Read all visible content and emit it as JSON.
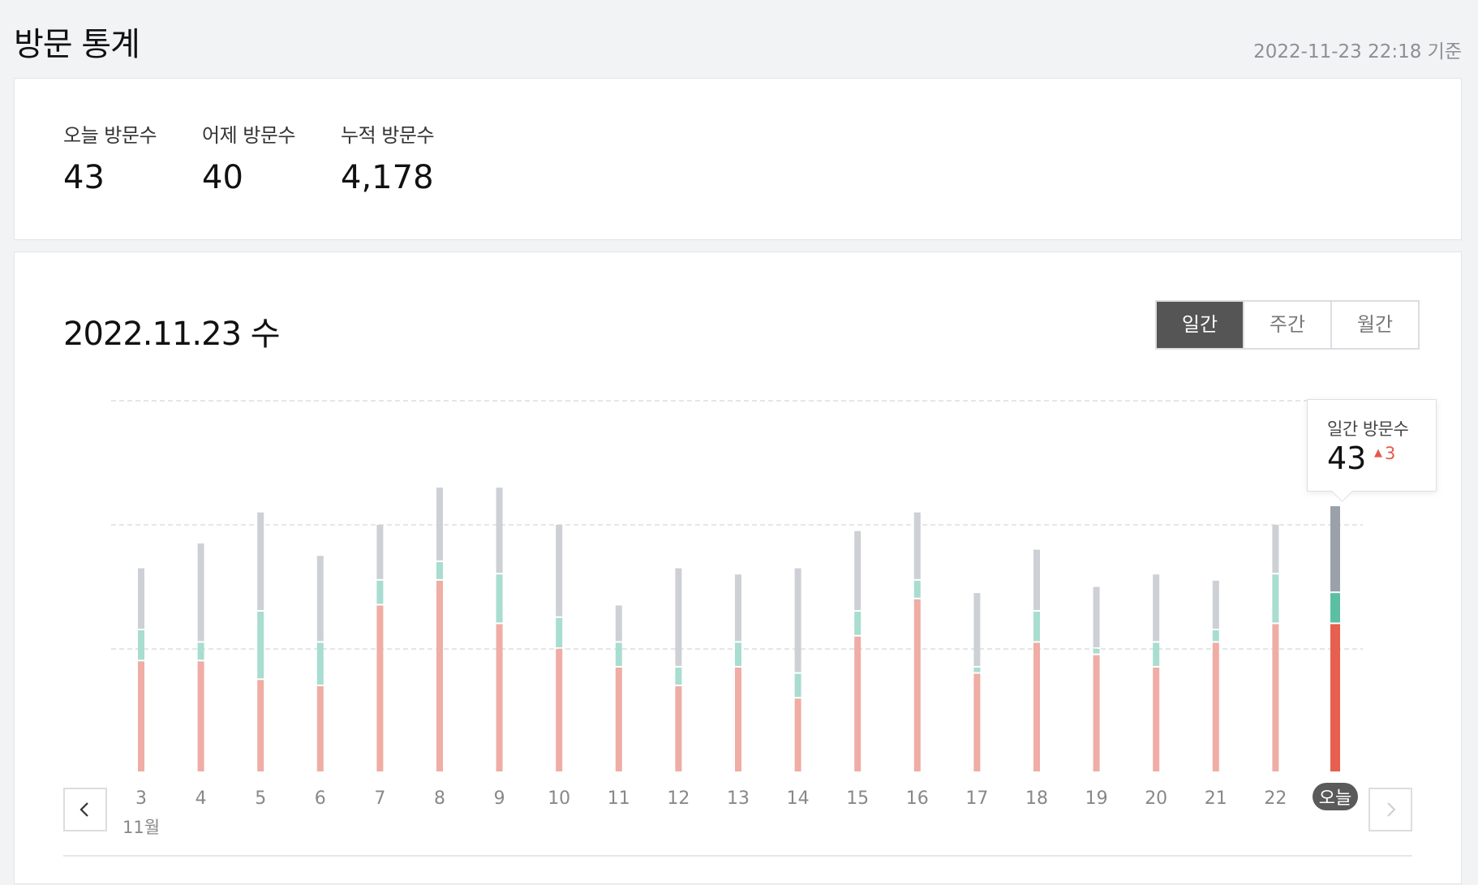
{
  "header": {
    "title": "방문 통계",
    "timestamp": "2022-11-23 22:18 기준"
  },
  "summary": {
    "today_label": "오늘 방문수",
    "today_value": "43",
    "yesterday_label": "어제 방문수",
    "yesterday_value": "40",
    "total_label": "누적 방문수",
    "total_value": "4,178"
  },
  "chart_panel": {
    "date_title": "2022.11.23 수",
    "tabs": [
      "일간",
      "주간",
      "월간"
    ],
    "active_tab": "일간",
    "month_label": "11월",
    "tooltip": {
      "label": "일간 방문수",
      "value": "43",
      "change": "3",
      "change_arrow": "▲"
    }
  },
  "colors": {
    "segment_bottom": "#efada5",
    "segment_middle": "#a8ddd0",
    "segment_top": "#cdd0d4",
    "today_bottom": "#e65f4f",
    "today_middle": "#5cbfa4",
    "today_top": "#9ba1a9",
    "today_badge": "#5a5a5a",
    "grid": "#dcdde0"
  },
  "chart_data": {
    "type": "bar",
    "stacked": true,
    "categories": [
      "3",
      "4",
      "5",
      "6",
      "7",
      "8",
      "9",
      "10",
      "11",
      "12",
      "13",
      "14",
      "15",
      "16",
      "17",
      "18",
      "19",
      "20",
      "21",
      "22",
      "오늘"
    ],
    "highlight_category": "오늘",
    "series": [
      {
        "values": [
          18,
          18,
          15,
          14,
          27,
          31,
          24,
          20,
          17,
          14,
          17,
          12,
          22,
          28,
          16,
          21,
          19,
          17,
          21,
          24,
          24
        ]
      },
      {
        "values": [
          5,
          3,
          11,
          7,
          4,
          3,
          8,
          5,
          4,
          3,
          4,
          4,
          4,
          3,
          1,
          5,
          1,
          4,
          2,
          8,
          5
        ]
      },
      {
        "values": [
          10,
          16,
          16,
          14,
          9,
          12,
          14,
          15,
          6,
          16,
          11,
          17,
          13,
          11,
          12,
          10,
          10,
          11,
          8,
          8,
          14
        ]
      }
    ],
    "ylim": [
      0,
      60
    ],
    "grid": true,
    "grid_values": [
      20,
      40,
      60
    ]
  }
}
